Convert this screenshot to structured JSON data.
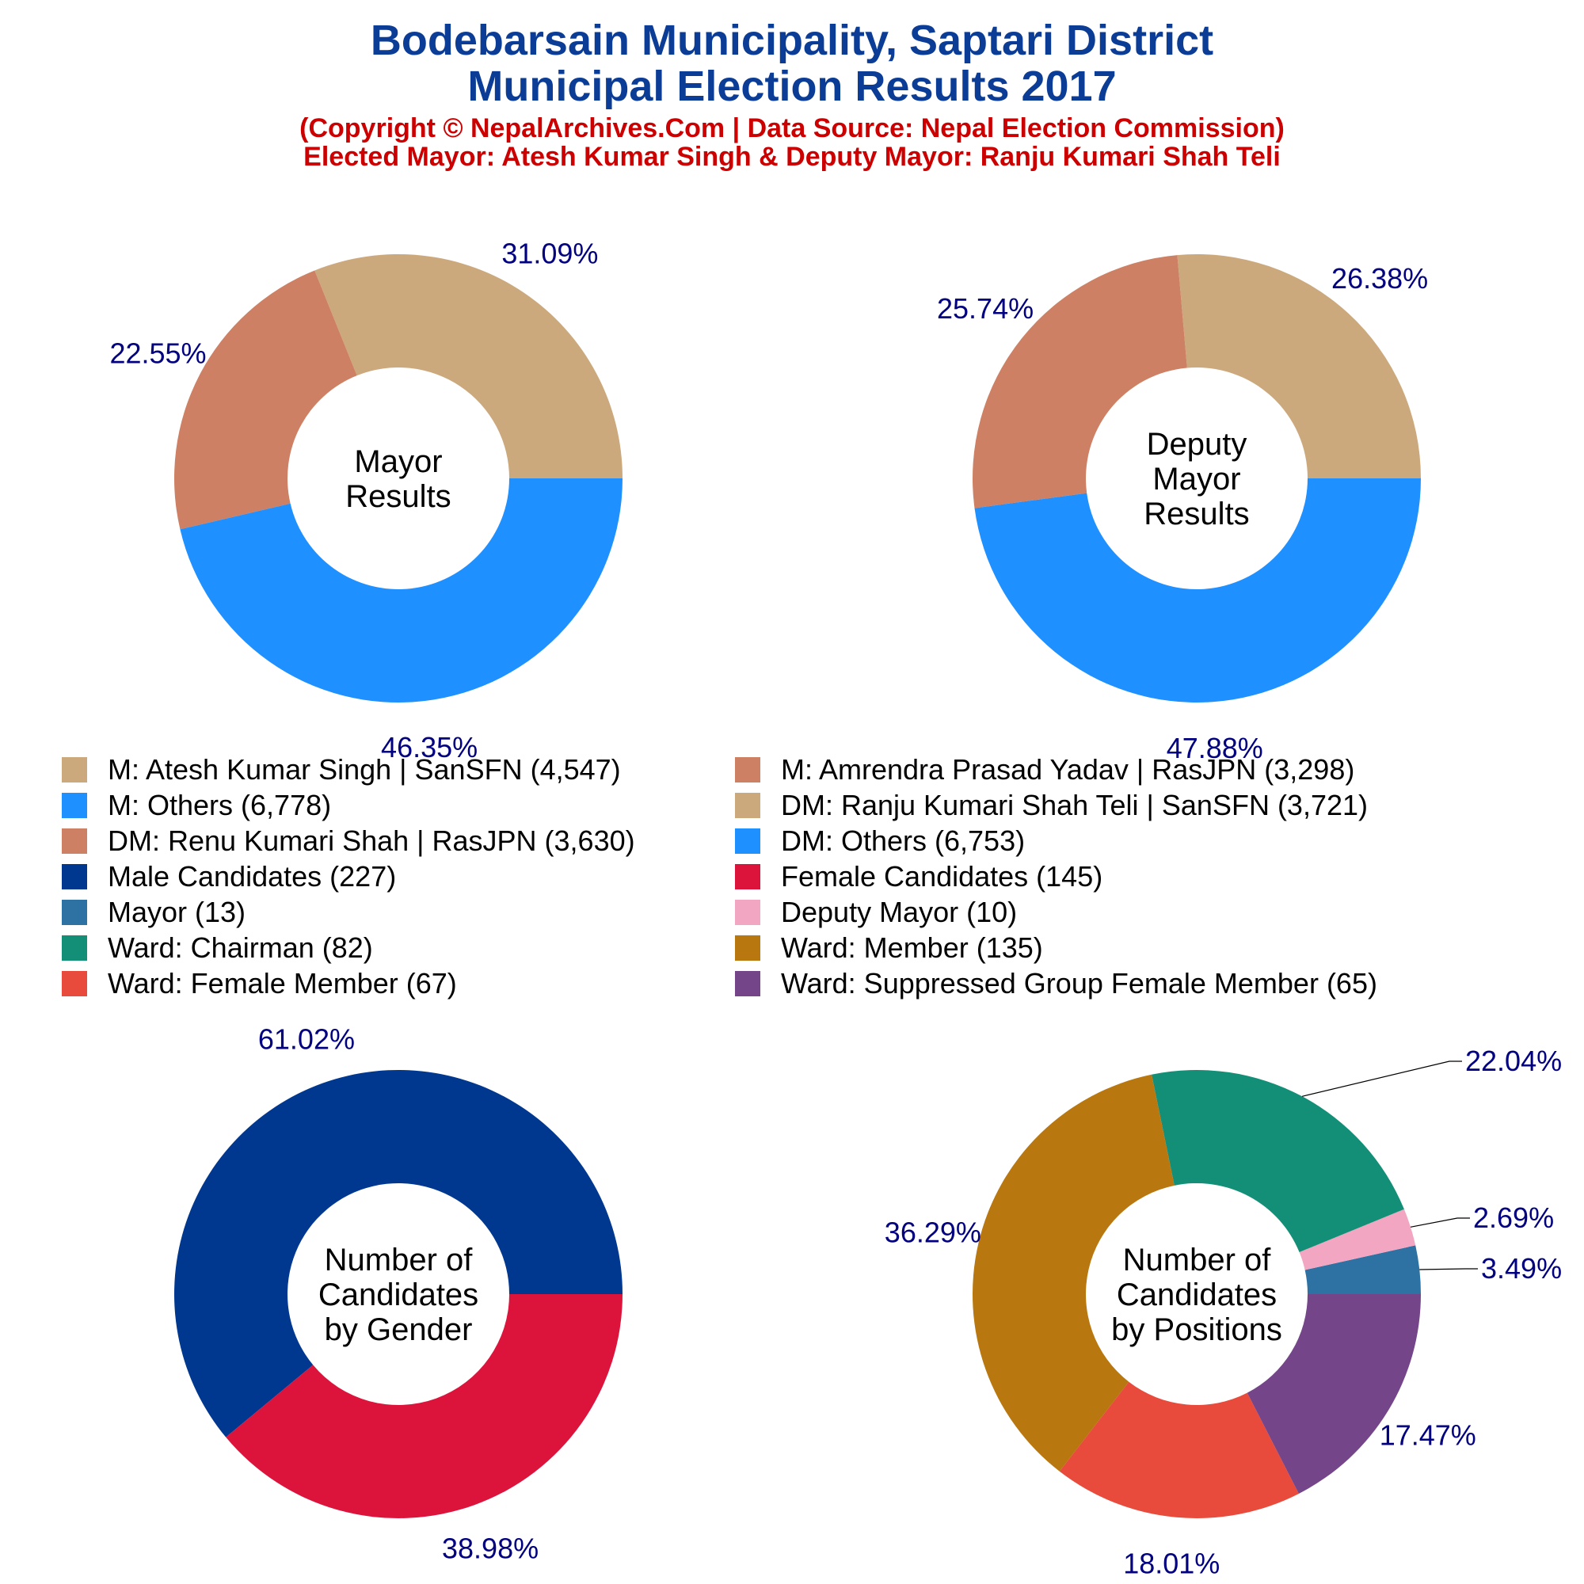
{
  "header": {
    "title_line1": "Bodebarsain Municipality, Saptari District",
    "title_line2": "Municipal Election Results 2017",
    "subtitle_line1": "(Copyright © NepalArchives.Com | Data Source: Nepal Election Commission)",
    "subtitle_line2": "Elected Mayor: Atesh Kumar Singh & Deputy Mayor: Ranju Kumari Shah Teli",
    "title_color": "#0B3C96",
    "subtitle_color": "#CC0000"
  },
  "label_color": "#000080",
  "legend": [
    {
      "label": "M: Atesh Kumar Singh | SanSFN (4,547)",
      "color": "#CCA97D"
    },
    {
      "label": "M: Amrendra Prasad Yadav | RasJPN (3,298)",
      "color": "#CD8063"
    },
    {
      "label": "M: Others (6,778)",
      "color": "#1F90FF"
    },
    {
      "label": "DM: Ranju Kumari Shah Teli | SanSFN (3,721)",
      "color": "#CCA97D"
    },
    {
      "label": "DM: Renu Kumari Shah | RasJPN (3,630)",
      "color": "#CD8063"
    },
    {
      "label": "DM: Others (6,753)",
      "color": "#1F90FF"
    },
    {
      "label": "Male Candidates (227)",
      "color": "#003890"
    },
    {
      "label": "Female Candidates (145)",
      "color": "#DC143C"
    },
    {
      "label": "Mayor (13)",
      "color": "#2E72A4"
    },
    {
      "label": "Deputy Mayor (10)",
      "color": "#F3A6C2"
    },
    {
      "label": "Ward: Chairman (82)",
      "color": "#138F77"
    },
    {
      "label": "Ward: Member (135)",
      "color": "#B8770F"
    },
    {
      "label": "Ward: Female Member (67)",
      "color": "#E84B3C"
    },
    {
      "label": "Ward: Suppressed Group Female Member (65)",
      "color": "#744589"
    }
  ],
  "chart_data": [
    {
      "type": "pie",
      "center_label": [
        "Mayor",
        "Results"
      ],
      "slices": [
        {
          "name": "M: Atesh Kumar Singh | SanSFN",
          "value": 4547,
          "label": "31.09%",
          "color": "#CCA97D"
        },
        {
          "name": "M: Amrendra Prasad Yadav | RasJPN",
          "value": 3298,
          "label": "22.55%",
          "color": "#CD8063"
        },
        {
          "name": "M: Others",
          "value": 6778,
          "label": "46.35%",
          "color": "#1F90FF"
        }
      ]
    },
    {
      "type": "pie",
      "center_label": [
        "Deputy",
        "Mayor",
        "Results"
      ],
      "slices": [
        {
          "name": "DM: Ranju Kumari Shah Teli | SanSFN",
          "value": 3721,
          "label": "26.38%",
          "color": "#CCA97D"
        },
        {
          "name": "DM: Renu Kumari Shah | RasJPN",
          "value": 3630,
          "label": "25.74%",
          "color": "#CD8063"
        },
        {
          "name": "DM: Others",
          "value": 6753,
          "label": "47.88%",
          "color": "#1F90FF"
        }
      ]
    },
    {
      "type": "pie",
      "center_label": [
        "Number of",
        "Candidates",
        "by Gender"
      ],
      "slices": [
        {
          "name": "Male Candidates",
          "value": 227,
          "label": "61.02%",
          "color": "#003890"
        },
        {
          "name": "Female Candidates",
          "value": 145,
          "label": "38.98%",
          "color": "#DC143C"
        }
      ]
    },
    {
      "type": "pie",
      "center_label": [
        "Number of",
        "Candidates",
        "by Positions"
      ],
      "slices": [
        {
          "name": "Mayor",
          "value": 13,
          "label": "3.49%",
          "color": "#2E72A4"
        },
        {
          "name": "Deputy Mayor",
          "value": 10,
          "label": "2.69%",
          "color": "#F3A6C2"
        },
        {
          "name": "Ward: Chairman",
          "value": 82,
          "label": "22.04%",
          "color": "#138F77"
        },
        {
          "name": "Ward: Member",
          "value": 135,
          "label": "36.29%",
          "color": "#B8770F"
        },
        {
          "name": "Ward: Female Member",
          "value": 67,
          "label": "18.01%",
          "color": "#E84B3C"
        },
        {
          "name": "Ward: Suppressed Group Female Member",
          "value": 65,
          "label": "17.47%",
          "color": "#744589"
        }
      ]
    }
  ]
}
